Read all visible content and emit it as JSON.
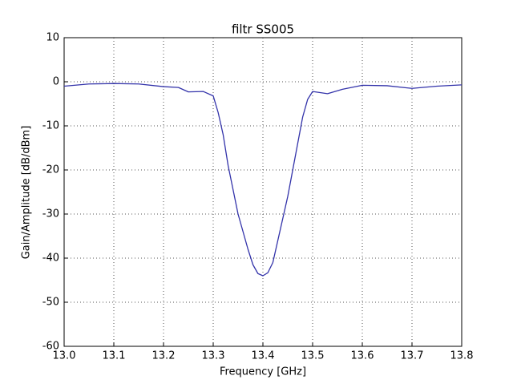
{
  "chart_data": {
    "type": "line",
    "title": "filtr SS005",
    "x_label": "Frequency [GHz]",
    "y_label": "Gain/Amplitude [dB/dBm]",
    "x": [
      13.0,
      13.05,
      13.1,
      13.15,
      13.2,
      13.23,
      13.25,
      13.28,
      13.3,
      13.31,
      13.32,
      13.33,
      13.35,
      13.37,
      13.38,
      13.39,
      13.4,
      13.41,
      13.42,
      13.43,
      13.45,
      13.47,
      13.48,
      13.49,
      13.5,
      13.53,
      13.56,
      13.6,
      13.65,
      13.7,
      13.75,
      13.8
    ],
    "series": [
      {
        "name": "gain",
        "color": "#3333aa",
        "values": [
          -1.0,
          -0.5,
          -0.4,
          -0.5,
          -1.1,
          -1.3,
          -2.3,
          -2.2,
          -3.2,
          -7,
          -12,
          -19,
          -30,
          -38,
          -41.5,
          -43.5,
          -44.0,
          -43.3,
          -41,
          -36,
          -26,
          -14,
          -8,
          -4,
          -2.2,
          -2.7,
          -1.7,
          -0.8,
          -0.9,
          -1.5,
          -1.0,
          -0.7
        ]
      }
    ],
    "xlim": [
      13.0,
      13.8
    ],
    "xticks": [
      {
        "value": 13.0,
        "label": "13.0"
      },
      13.1,
      13.2,
      13.3,
      13.4,
      13.5,
      13.6,
      13.7,
      13.8
    ],
    "ylim": [
      -60,
      10
    ],
    "yticks": [
      -60,
      -50,
      -40,
      -30,
      -20,
      -10,
      0,
      10
    ],
    "grid": true
  }
}
